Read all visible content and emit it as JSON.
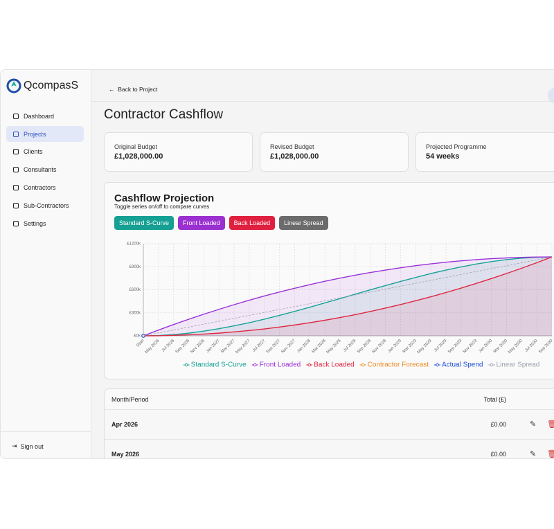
{
  "sidebar": {
    "brand": "QcompasS",
    "nav": [
      {
        "label": "Dashboard",
        "active": false
      },
      {
        "label": "Projects",
        "active": true
      },
      {
        "label": "Clients",
        "active": false
      },
      {
        "label": "Consultants",
        "active": false
      },
      {
        "label": "Contractors",
        "active": false
      },
      {
        "label": "Sub-Contractors",
        "active": false
      },
      {
        "label": "Settings",
        "active": false
      }
    ],
    "sign_out": "Sign out"
  },
  "header": {
    "back": "Back to Project",
    "title": "Contractor Cashflow"
  },
  "cards": [
    {
      "label": "Original Budget",
      "value": "£1,028,000.00"
    },
    {
      "label": "Revised Budget",
      "value": "£1,028,000.00"
    },
    {
      "label": "Projected Programme",
      "value": "54 weeks"
    }
  ],
  "chart_data": {
    "type": "line",
    "title": "Cashflow Projection",
    "subtitle": "Toggle series on/off to compare curves",
    "categories": [
      "Start",
      "May 2026",
      "Jul 2026",
      "Sep 2026",
      "Nov 2026",
      "Jan 2027",
      "Mar 2027",
      "May 2027",
      "Jul 2027",
      "Sep 2027",
      "Nov 2027",
      "Jan 2028",
      "Mar 2028",
      "May 2028",
      "Jul 2028",
      "Sep 2028",
      "Nov 2028",
      "Jan 2029",
      "Mar 2029",
      "May 2029",
      "Jul 2029",
      "Sep 2029",
      "Nov 2029",
      "Jan 2030",
      "Mar 2030",
      "May 2030",
      "Jul 2030",
      "Sep 2030"
    ],
    "ylim": [
      0,
      1200000
    ],
    "yticks": [
      {
        "value": 0,
        "label": "£0k"
      },
      {
        "value": 300000,
        "label": "£300k"
      },
      {
        "value": 600000,
        "label": "£600k"
      },
      {
        "value": 900000,
        "label": "£900k"
      },
      {
        "value": 1200000,
        "label": "£1200k"
      }
    ],
    "grid": true,
    "legend": "bottom",
    "series": [
      {
        "name": "Standard S-Curve",
        "color": "#16a394",
        "toggle_color": "#15a093",
        "area": true,
        "values": [
          0,
          4000,
          16000,
          35000,
          61000,
          93000,
          130000,
          171000,
          217000,
          267000,
          319000,
          373000,
          429000,
          485000,
          543000,
          599000,
          655000,
          709000,
          761000,
          811000,
          857000,
          898000,
          935000,
          967000,
          993000,
          1012000,
          1024000,
          1028000
        ]
      },
      {
        "name": "Front Loaded",
        "color": "#9b30d9",
        "toggle_color": "#9b30d0",
        "area": true,
        "values": [
          0,
          75000,
          147000,
          216000,
          282000,
          345000,
          406000,
          464000,
          519000,
          571000,
          620000,
          667000,
          711000,
          752000,
          790000,
          825000,
          857000,
          887000,
          914000,
          938000,
          959000,
          977000,
          993000,
          1005000,
          1015000,
          1022000,
          1027000,
          1028000
        ]
      },
      {
        "name": "Back Loaded",
        "color": "#e0263f",
        "toggle_color": "#e0203f",
        "area": true,
        "values": [
          0,
          1000,
          6000,
          13000,
          23000,
          35000,
          51000,
          69000,
          90000,
          114000,
          141000,
          171000,
          203000,
          238000,
          276000,
          317000,
          361000,
          408000,
          457000,
          509000,
          564000,
          622000,
          683000,
          746000,
          812000,
          881000,
          953000,
          1028000
        ]
      },
      {
        "name": "Contractor Forecast",
        "color": "#f08a24",
        "values": [
          0,
          null,
          null,
          null,
          null,
          null,
          null,
          null,
          null,
          null,
          null,
          null,
          null,
          null,
          null,
          null,
          null,
          null,
          null,
          null,
          null,
          null,
          null,
          null,
          null,
          null,
          null,
          null
        ]
      },
      {
        "name": "Actual Spend",
        "color": "#1d4ed8",
        "values": [
          0,
          null,
          null,
          null,
          null,
          null,
          null,
          null,
          null,
          null,
          null,
          null,
          null,
          null,
          null,
          null,
          null,
          null,
          null,
          null,
          null,
          null,
          null,
          null,
          null,
          null,
          null,
          null
        ]
      },
      {
        "name": "Linear Spread",
        "color": "#9ca3af",
        "toggle_color": "#6b6b6b",
        "dashed": true,
        "values": [
          0,
          38000,
          76000,
          114000,
          152000,
          190000,
          228000,
          267000,
          305000,
          343000,
          381000,
          419000,
          457000,
          495000,
          533000,
          571000,
          609000,
          647000,
          685000,
          723000,
          761000,
          800000,
          838000,
          876000,
          914000,
          952000,
          990000,
          1028000
        ]
      }
    ]
  },
  "table": {
    "headers": [
      "Month/Period",
      "Total (£)"
    ],
    "rows": [
      [
        "Apr 2026",
        "£0.00"
      ],
      [
        "May 2026",
        "£0.00"
      ]
    ]
  }
}
